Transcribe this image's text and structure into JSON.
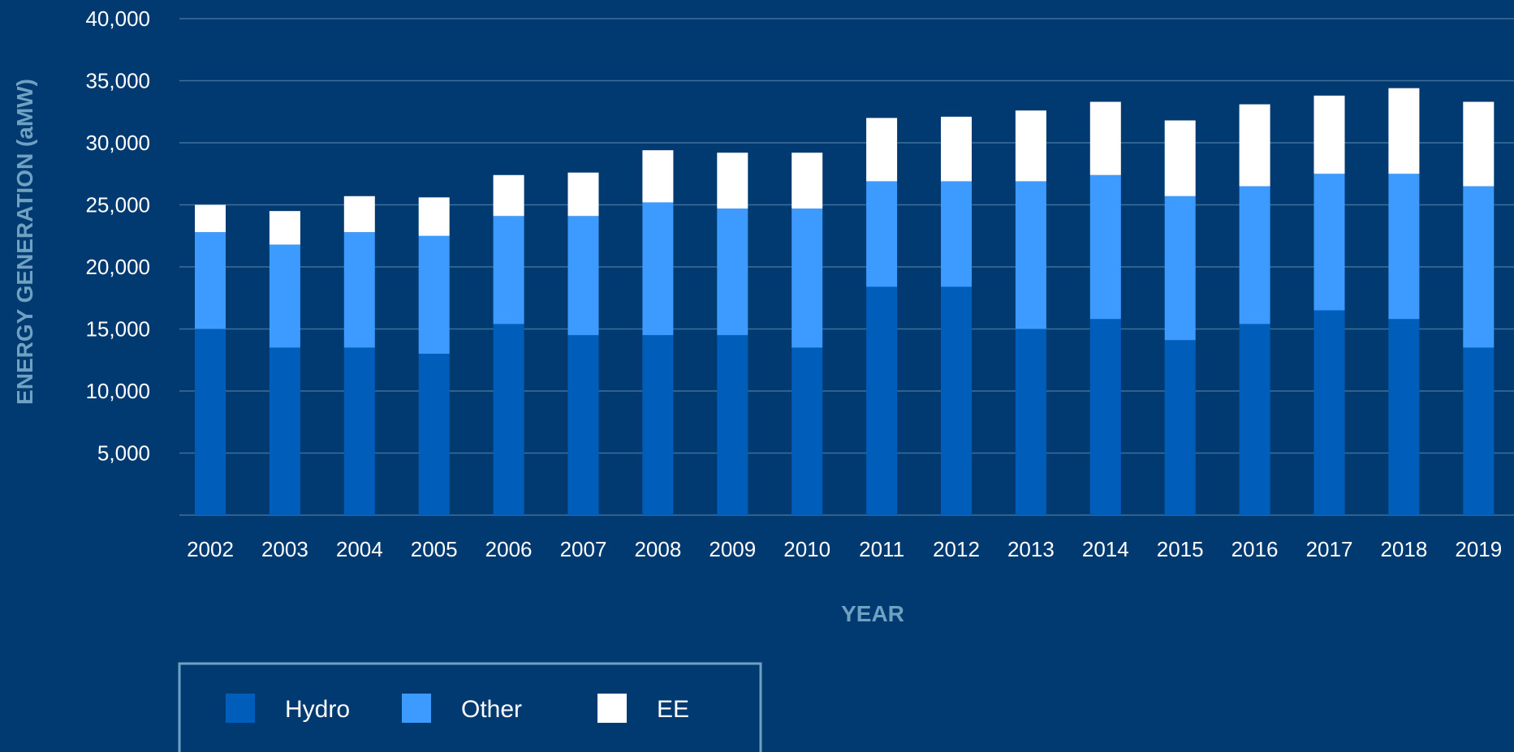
{
  "colors": {
    "background": "#003a70",
    "gridline": "#3f6f99",
    "axis_title": "#6fa1c3",
    "tick_text": "#ffffff",
    "legend_border": "#6fa1c3"
  },
  "chart_data": {
    "type": "bar",
    "stacked": true,
    "xlabel": "YEAR",
    "ylabel": "ENERGY GENERATION (aMW)",
    "ylim": [
      0,
      40000
    ],
    "yticks": [
      5000,
      10000,
      15000,
      20000,
      25000,
      30000,
      35000,
      40000
    ],
    "ytick_labels": [
      "5,000",
      "10,000",
      "15,000",
      "20,000",
      "25,000",
      "30,000",
      "35,000",
      "40,000"
    ],
    "grid": true,
    "legend_position": "bottom-left",
    "categories": [
      "2002",
      "2003",
      "2004",
      "2005",
      "2006",
      "2007",
      "2008",
      "2009",
      "2010",
      "2011",
      "2012",
      "2013",
      "2014",
      "2015",
      "2016",
      "2017",
      "2018",
      "2019"
    ],
    "series": [
      {
        "name": "Hydro",
        "color": "#005ebb",
        "values": [
          15000,
          13500,
          13500,
          13000,
          15400,
          14500,
          14500,
          14500,
          13500,
          18400,
          18400,
          15000,
          15800,
          14100,
          15400,
          16500,
          15800,
          13500
        ]
      },
      {
        "name": "Other",
        "color": "#3d9bff",
        "values": [
          7800,
          8300,
          9300,
          9500,
          8700,
          9600,
          10700,
          10200,
          11200,
          8500,
          8500,
          11900,
          11600,
          11600,
          11100,
          11000,
          11700,
          13000
        ]
      },
      {
        "name": "EE",
        "color": "#ffffff",
        "values": [
          2200,
          2700,
          2900,
          3100,
          3300,
          3500,
          4200,
          4500,
          4500,
          5100,
          5200,
          5700,
          5900,
          6100,
          6600,
          6300,
          6900,
          6800
        ]
      }
    ]
  }
}
